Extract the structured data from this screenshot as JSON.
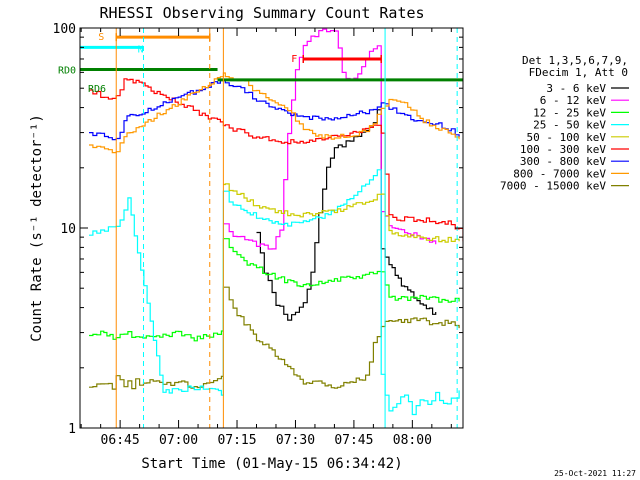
{
  "chart_data": {
    "type": "line",
    "title": "RHESSI Observing Summary Count Rates",
    "xlabel": "Start Time (01-May-15 06:34:42)",
    "ylabel": "Count Rate (s⁻¹ detector⁻¹)",
    "yscale": "log",
    "ylim": [
      1,
      100
    ],
    "xlim_min": [
      34.7,
      100.0
    ],
    "x_ticks": [
      {
        "t": 45,
        "label": "06:45"
      },
      {
        "t": 60,
        "label": "07:00"
      },
      {
        "t": 75,
        "label": "07:15"
      },
      {
        "t": 90,
        "label": "07:30"
      },
      {
        "t": 105,
        "label": "07:45"
      },
      {
        "t": 120,
        "label": "08:00"
      }
    ],
    "y_ticks": [
      {
        "v": 1,
        "label": "1"
      },
      {
        "v": 10,
        "label": "10"
      },
      {
        "v": 100,
        "label": "100"
      }
    ],
    "legend": {
      "header": [
        "Det 1,3,5,6,7,9,",
        "FDecim 1, Att 0"
      ],
      "position": "right",
      "entries": [
        {
          "label": "3 - 6 keV",
          "color": "#000000"
        },
        {
          "label": "6 - 12 keV",
          "color": "#ff00ff"
        },
        {
          "label": "12 - 25 keV",
          "color": "#00ff00"
        },
        {
          "label": "25 - 50 keV",
          "color": "#00ffff"
        },
        {
          "label": "50 - 100 keV",
          "color": "#cccc00"
        },
        {
          "label": "100 - 300 keV",
          "color": "#ff0000"
        },
        {
          "label": "300 - 800 keV",
          "color": "#0000ff"
        },
        {
          "label": "800 - 7000 keV",
          "color": "#ff9900"
        },
        {
          "label": "7000 - 15000 keV",
          "color": "#808000"
        }
      ]
    },
    "flags": [
      {
        "label": "S",
        "color": "#ff8c00",
        "t0": 44,
        "t1": 68,
        "y": 90
      },
      {
        "label": "N",
        "color": "#00ffff",
        "t0": 34.7,
        "t1": 51,
        "y": 80
      },
      {
        "label": "F",
        "color": "#ff0000",
        "t0": 92,
        "t1": 112,
        "y": 70
      },
      {
        "label": "RD0",
        "color": "#008000",
        "t0": 34.7,
        "t1": 70,
        "y": 62
      },
      {
        "label": "RD6",
        "color": "#008000",
        "t0": 70,
        "t1": 133,
        "y": 55
      }
    ],
    "series": [
      {
        "name": "7000 - 15000 keV",
        "color": "#808000",
        "x": [
          37,
          40,
          43,
          44,
          45,
          46,
          47,
          48,
          49,
          50,
          51,
          56,
          58,
          60,
          64,
          68,
          71,
          71.5,
          73,
          76,
          80,
          84,
          88,
          92,
          96,
          100,
          104,
          108,
          110,
          112,
          114,
          118,
          122,
          126,
          130,
          132
        ],
        "y": [
          1.6,
          1.7,
          1.6,
          1.8,
          1.7,
          1.6,
          1.7,
          1.6,
          1.8,
          1.6,
          1.7,
          1.7,
          1.6,
          1.7,
          1.6,
          1.7,
          1.8,
          5.0,
          4.3,
          3.5,
          2.8,
          2.4,
          2.0,
          1.7,
          1.7,
          1.6,
          1.7,
          1.8,
          2.6,
          3.3,
          3.5,
          3.4,
          3.5,
          3.3,
          3.4,
          3.2
        ]
      },
      {
        "name": "3 - 6 keV",
        "color": "#000000",
        "x": [
          80,
          82,
          85,
          88,
          90,
          92,
          94,
          96,
          98,
          100,
          102,
          104,
          106,
          108,
          110,
          111,
          112,
          114,
          118,
          122,
          126
        ],
        "y": [
          9.5,
          6.0,
          4.2,
          3.5,
          3.8,
          4.2,
          6.0,
          12,
          20,
          25,
          26,
          27,
          29,
          31,
          34,
          40,
          8,
          6.5,
          5.0,
          4.2,
          3.7
        ]
      },
      {
        "name": "12 - 25 keV",
        "color": "#00ff00",
        "x": [
          37,
          40,
          44,
          46,
          48,
          50,
          56,
          60,
          64,
          68,
          71,
          71.5,
          73,
          76,
          80,
          84,
          88,
          92,
          96,
          100,
          104,
          108,
          110,
          112,
          114,
          118,
          122,
          126,
          130,
          132
        ],
        "y": [
          2.9,
          3.0,
          2.8,
          3.0,
          2.9,
          2.8,
          2.9,
          3.0,
          2.8,
          2.9,
          3.0,
          9.0,
          7.8,
          7.0,
          6.3,
          5.8,
          5.4,
          5.2,
          5.3,
          5.5,
          5.6,
          5.8,
          5.9,
          6.0,
          4.5,
          4.4,
          4.5,
          4.4,
          4.3,
          4.4
        ]
      },
      {
        "name": "6 - 12 keV",
        "color": "#ff00ff",
        "x": [
          71.5,
          73,
          75,
          78,
          80,
          82,
          84,
          86,
          88,
          90,
          92,
          94,
          96,
          98,
          100,
          101,
          102,
          104,
          106,
          108,
          110,
          111,
          112,
          114,
          118,
          122,
          126
        ],
        "y": [
          10.5,
          9.5,
          9.0,
          8.6,
          8.3,
          8.0,
          7.8,
          10,
          30,
          62,
          80,
          90,
          95,
          98,
          95,
          80,
          60,
          55,
          60,
          72,
          78,
          80,
          12,
          10.5,
          9.5,
          9.0,
          8.5
        ]
      },
      {
        "name": "25 - 50 keV",
        "color": "#00ffff",
        "x": [
          37,
          38,
          40,
          42,
          44,
          45,
          46,
          47,
          56,
          64,
          71,
          71.5,
          73,
          76,
          80,
          84,
          88,
          90,
          92,
          96,
          100,
          104,
          106,
          108,
          110,
          111,
          112,
          113,
          114,
          116,
          118,
          120,
          122,
          124,
          126,
          128,
          130,
          132
        ],
        "y": [
          9.2,
          9.5,
          9.8,
          10.0,
          10.2,
          11,
          12,
          14,
          1.5,
          1.6,
          1.5,
          15,
          13.5,
          12.5,
          11.5,
          10.8,
          10.5,
          10.4,
          10.6,
          11.2,
          12.5,
          14,
          15.5,
          17,
          18,
          19,
          1.9,
          1.5,
          1.2,
          1.3,
          1.5,
          1.2,
          1.4,
          1.3,
          1.5,
          1.3,
          1.4,
          1.5
        ]
      },
      {
        "name": "50 - 100 keV",
        "color": "#cccc00",
        "x": [
          71.5,
          72,
          74,
          76,
          80,
          84,
          88,
          92,
          96,
          100,
          104,
          108,
          110,
          112,
          114,
          118,
          122,
          126,
          130,
          132
        ],
        "y": [
          16.5,
          16.2,
          15.5,
          14.5,
          13,
          12.2,
          11.8,
          11.6,
          11.8,
          12.2,
          12.8,
          13.6,
          14.2,
          14.8,
          9.5,
          9.2,
          9.0,
          8.8,
          8.7,
          8.6
        ]
      },
      {
        "name": "100 - 300 keV",
        "color": "#ff0000",
        "x": [
          37,
          38,
          40,
          42,
          44,
          45,
          46,
          71.5,
          72,
          74,
          76,
          78,
          80,
          84,
          88,
          92,
          96,
          100,
          104,
          108,
          111,
          112,
          114,
          116,
          118,
          122,
          126,
          130,
          132,
          133
        ],
        "y": [
          49,
          48,
          46,
          45,
          45,
          50,
          57,
          33,
          32,
          31,
          30.5,
          29.5,
          28.5,
          27.5,
          27,
          27,
          27.5,
          28.5,
          29.5,
          31.5,
          33.5,
          29,
          11.5,
          11,
          11.2,
          11,
          10.8,
          10.5,
          9.8,
          8.8
        ]
      },
      {
        "name": "300 - 800 keV",
        "color": "#0000ff",
        "x": [
          37,
          38,
          40,
          42,
          44,
          45,
          46,
          71.5,
          72,
          74,
          76,
          78,
          80,
          84,
          88,
          92,
          96,
          100,
          104,
          108,
          110,
          112,
          114,
          116,
          118,
          122,
          126,
          130,
          132
        ],
        "y": [
          30,
          29.5,
          29,
          28.5,
          28,
          30,
          35,
          55,
          54,
          52,
          50,
          47,
          44,
          40,
          37,
          36,
          35.5,
          35.5,
          36.5,
          38,
          40,
          42,
          40,
          38,
          36,
          34,
          33,
          31,
          29
        ]
      },
      {
        "name": "800 - 7000 keV",
        "color": "#ff9900",
        "x": [
          37,
          38,
          40,
          42,
          44,
          45,
          46,
          71.5,
          72,
          74,
          76,
          78,
          80,
          84,
          88,
          90,
          92,
          96,
          100,
          104,
          108,
          110,
          112,
          114,
          116,
          118,
          122,
          126,
          130,
          132
        ],
        "y": [
          26,
          25.5,
          25,
          24.5,
          24.5,
          26,
          29,
          58,
          57,
          56,
          55,
          52,
          48,
          43,
          39,
          35,
          31,
          29,
          28.5,
          29,
          30.5,
          33,
          40,
          43,
          44,
          43,
          35,
          32,
          30,
          28.5
        ]
      }
    ]
  },
  "footer": {
    "timestamp": "25-Oct-2021 11:27"
  }
}
